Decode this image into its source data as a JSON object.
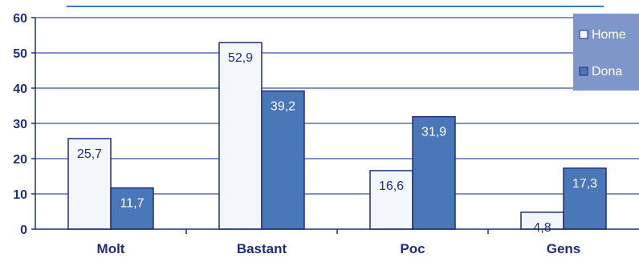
{
  "chart_data": {
    "type": "bar",
    "categories": [
      "Molt",
      "Bastant",
      "Poc",
      "Gens"
    ],
    "series": [
      {
        "name": "Home",
        "values": [
          25.7,
          52.9,
          16.6,
          4.8
        ],
        "labels": [
          "25,7",
          "52,9",
          "16,6",
          "4,8"
        ],
        "color": "#f3f6fb",
        "label_color": "#1f2f7a"
      },
      {
        "name": "Dona",
        "values": [
          11.7,
          39.2,
          31.9,
          17.3
        ],
        "labels": [
          "11,7",
          "39,2",
          "31,9",
          "17,3"
        ],
        "color": "#4a77b8",
        "label_color": "#ffffff"
      }
    ],
    "yticks": [
      0,
      10,
      20,
      30,
      40,
      50,
      60
    ],
    "ylim": [
      0,
      60
    ],
    "grid": true,
    "legend_position": "top-right",
    "colors": {
      "axis": "#1f2f7a",
      "bar_border": "#1f2f7a",
      "legend_bg": "#7e96c9"
    }
  }
}
